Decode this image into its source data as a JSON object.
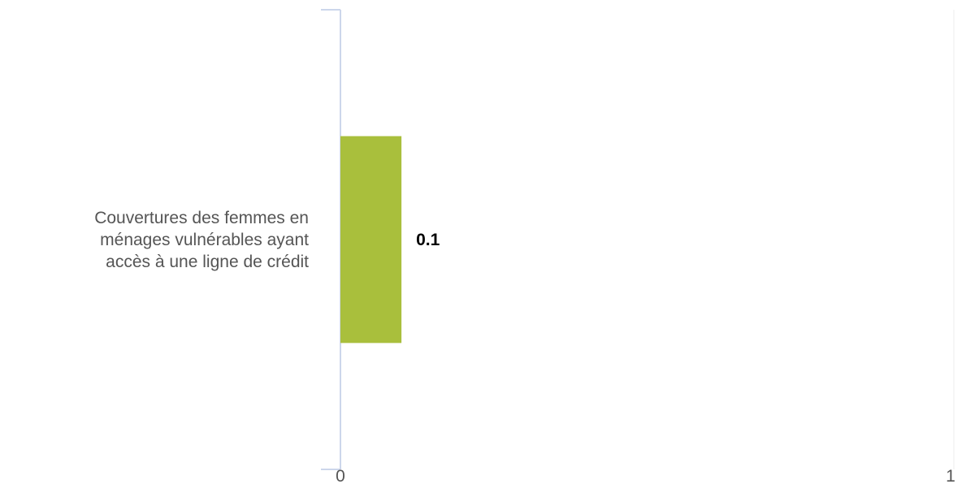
{
  "chart_data": {
    "type": "bar",
    "orientation": "horizontal",
    "categories": [
      "Couvertures des femmes en ménages vulnérables ayant accès à une ligne de crédit"
    ],
    "category_label_lines": [
      "Couvertures des femmes en",
      "ménages vulnérables ayant",
      "accès à une ligne de crédit"
    ],
    "values": [
      0.1
    ],
    "data_labels": [
      "0.1"
    ],
    "xlim": [
      0,
      1
    ],
    "x_ticks": [
      "0",
      "1"
    ],
    "title": "",
    "xlabel": "",
    "ylabel": "",
    "legend": "none",
    "grid": false,
    "colors": {
      "bar": "#a9bf3c",
      "axis": "#ccd6eb",
      "label_text": "#555555",
      "data_label_text": "#000000"
    }
  }
}
